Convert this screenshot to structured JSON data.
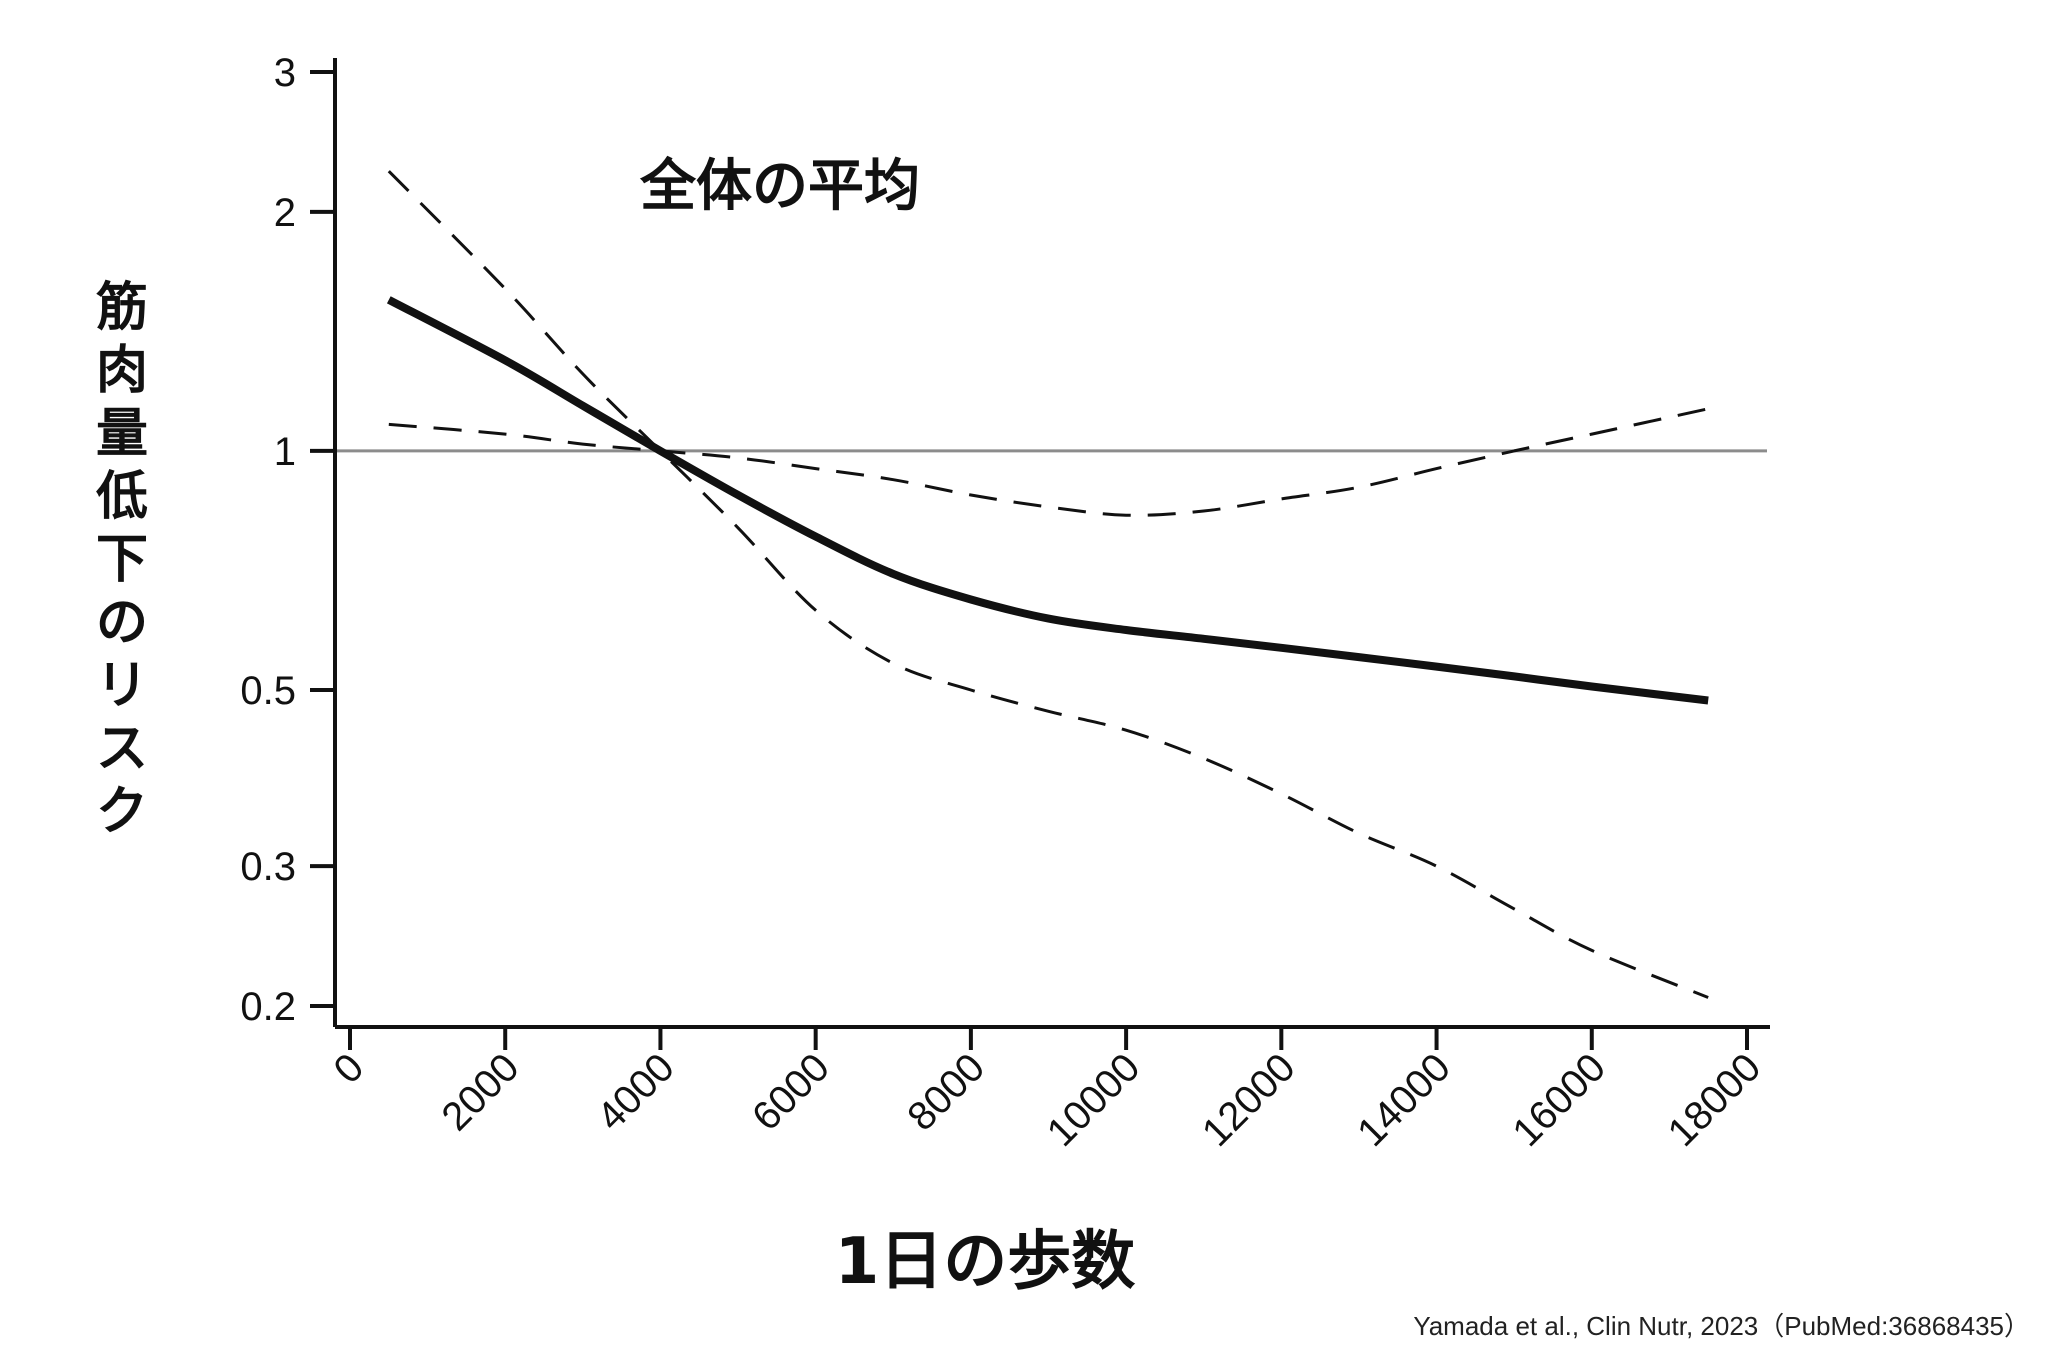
{
  "chart_data": {
    "type": "line",
    "title": "全体の平均",
    "xlabel": "1日の歩数",
    "ylabel": "筋肉量低下のリスク",
    "source": "Yamada et al., Clin Nutr, 2023（PubMed:36868435）",
    "yscale": "log",
    "xlim": [
      0,
      18000
    ],
    "ylim": [
      0.2,
      3
    ],
    "x_ticks": [
      "0",
      "2000",
      "4000",
      "6000",
      "8000",
      "10000",
      "12000",
      "14000",
      "16000",
      "18000"
    ],
    "y_ticks": [
      "0.2",
      "0.3",
      "0.5",
      "1",
      "2",
      "3"
    ],
    "reference_line": 1,
    "grid": false,
    "series": [
      {
        "style": "solid",
        "x": [
          500,
          2000,
          3000,
          4000,
          5000,
          6000,
          7000,
          8000,
          9000,
          10000,
          11000,
          12000,
          13000,
          14000,
          15000,
          16000,
          17500
        ],
        "y": [
          1.55,
          1.3,
          1.14,
          1.0,
          0.88,
          0.78,
          0.7,
          0.65,
          0.615,
          0.595,
          0.58,
          0.565,
          0.55,
          0.535,
          0.52,
          0.505,
          0.485
        ]
      },
      {
        "style": "dashed",
        "x": [
          500,
          2000,
          3000,
          4000,
          5000,
          6000,
          7000,
          8000,
          9000,
          10000,
          11000,
          12000,
          13000,
          14000,
          15000,
          16000,
          17500
        ],
        "y": [
          2.25,
          1.6,
          1.25,
          1.0,
          0.8,
          0.63,
          0.54,
          0.5,
          0.47,
          0.445,
          0.41,
          0.37,
          0.33,
          0.3,
          0.265,
          0.235,
          0.205
        ]
      },
      {
        "style": "dashed",
        "x": [
          500,
          2000,
          3000,
          4000,
          5000,
          6000,
          7000,
          8000,
          9000,
          10000,
          11000,
          12000,
          13000,
          14000,
          15000,
          16000,
          17500
        ],
        "y": [
          1.08,
          1.05,
          1.02,
          1.0,
          0.98,
          0.95,
          0.92,
          0.88,
          0.85,
          0.83,
          0.84,
          0.87,
          0.9,
          0.95,
          1.0,
          1.05,
          1.13
        ]
      }
    ]
  }
}
